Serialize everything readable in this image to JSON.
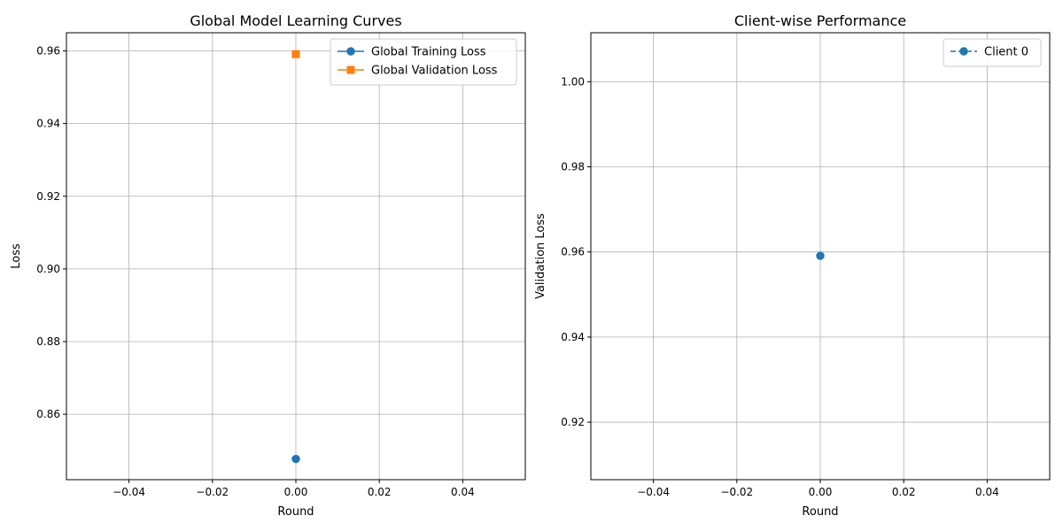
{
  "colors": {
    "training": "#1f77b4",
    "validation": "#ff7f0e",
    "client": "#1f77b4",
    "grid": "#b0b0b0"
  },
  "chart_data": [
    {
      "type": "line",
      "title": "Global Model Learning Curves",
      "xlabel": "Round",
      "ylabel": "Loss",
      "xlim": [
        -0.055,
        0.055
      ],
      "ylim": [
        0.842,
        0.965
      ],
      "xticks": [
        -0.04,
        -0.02,
        0.0,
        0.02,
        0.04
      ],
      "xtick_labels": [
        "−0.04",
        "−0.02",
        "0.00",
        "0.02",
        "0.04"
      ],
      "yticks": [
        0.86,
        0.88,
        0.9,
        0.92,
        0.94,
        0.96
      ],
      "ytick_labels": [
        "0.86",
        "0.88",
        "0.90",
        "0.92",
        "0.94",
        "0.96"
      ],
      "grid": true,
      "legend_position": "top-right",
      "series": [
        {
          "name": "Global Training Loss",
          "marker": "circle",
          "linestyle": "solid",
          "color_key": "training",
          "x": [
            0
          ],
          "y": [
            0.8477
          ]
        },
        {
          "name": "Global Validation Loss",
          "marker": "square",
          "linestyle": "solid",
          "color_key": "validation",
          "x": [
            0
          ],
          "y": [
            0.9591
          ]
        }
      ]
    },
    {
      "type": "line",
      "title": "Client-wise Performance",
      "xlabel": "Round",
      "ylabel": "Validation Loss",
      "xlim": [
        -0.055,
        0.055
      ],
      "ylim": [
        0.9065,
        1.0115
      ],
      "xticks": [
        -0.04,
        -0.02,
        0.0,
        0.02,
        0.04
      ],
      "xtick_labels": [
        "−0.04",
        "−0.02",
        "0.00",
        "0.02",
        "0.04"
      ],
      "yticks": [
        0.92,
        0.94,
        0.96,
        0.98,
        1.0
      ],
      "ytick_labels": [
        "0.92",
        "0.94",
        "0.96",
        "0.98",
        "1.00"
      ],
      "grid": true,
      "legend_position": "top-right",
      "series": [
        {
          "name": "Client 0",
          "marker": "circle",
          "linestyle": "dashed",
          "color_key": "client",
          "x": [
            0
          ],
          "y": [
            0.9591
          ]
        }
      ]
    }
  ]
}
